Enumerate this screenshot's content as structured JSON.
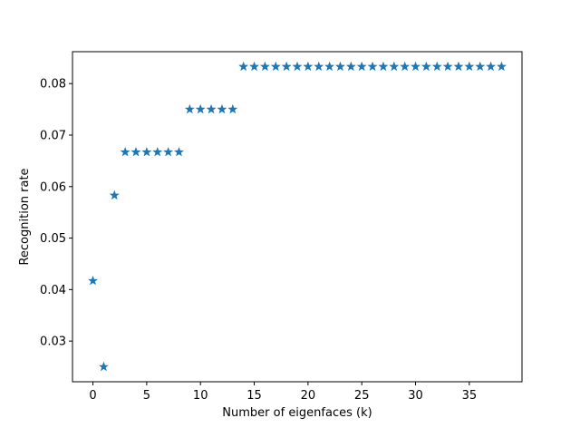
{
  "chart_data": {
    "type": "scatter",
    "title": "",
    "xlabel": "Number of eigenfaces (k)",
    "ylabel": "Recognition rate",
    "xlim": [
      -1.9,
      39.9
    ],
    "ylim": [
      0.0221,
      0.0862
    ],
    "x_ticks": [
      0,
      5,
      10,
      15,
      20,
      25,
      30,
      35
    ],
    "y_ticks": [
      0.03,
      0.04,
      0.05,
      0.06,
      0.07,
      0.08
    ],
    "x_tick_labels": [
      "0",
      "5",
      "10",
      "15",
      "20",
      "25",
      "30",
      "35"
    ],
    "y_tick_labels": [
      "0.03",
      "0.04",
      "0.05",
      "0.06",
      "0.07",
      "0.08"
    ],
    "marker": "star",
    "color": "#1f77b4",
    "grid": false,
    "x": [
      0,
      1,
      2,
      3,
      4,
      5,
      6,
      7,
      8,
      9,
      10,
      11,
      12,
      13,
      14,
      15,
      16,
      17,
      18,
      19,
      20,
      21,
      22,
      23,
      24,
      25,
      26,
      27,
      28,
      29,
      30,
      31,
      32,
      33,
      34,
      35,
      36,
      37,
      38
    ],
    "y": [
      0.0417,
      0.025,
      0.0583,
      0.0667,
      0.0667,
      0.0667,
      0.0667,
      0.0667,
      0.0667,
      0.075,
      0.075,
      0.075,
      0.075,
      0.075,
      0.0833,
      0.0833,
      0.0833,
      0.0833,
      0.0833,
      0.0833,
      0.0833,
      0.0833,
      0.0833,
      0.0833,
      0.0833,
      0.0833,
      0.0833,
      0.0833,
      0.0833,
      0.0833,
      0.0833,
      0.0833,
      0.0833,
      0.0833,
      0.0833,
      0.0833,
      0.0833,
      0.0833,
      0.0833
    ]
  }
}
